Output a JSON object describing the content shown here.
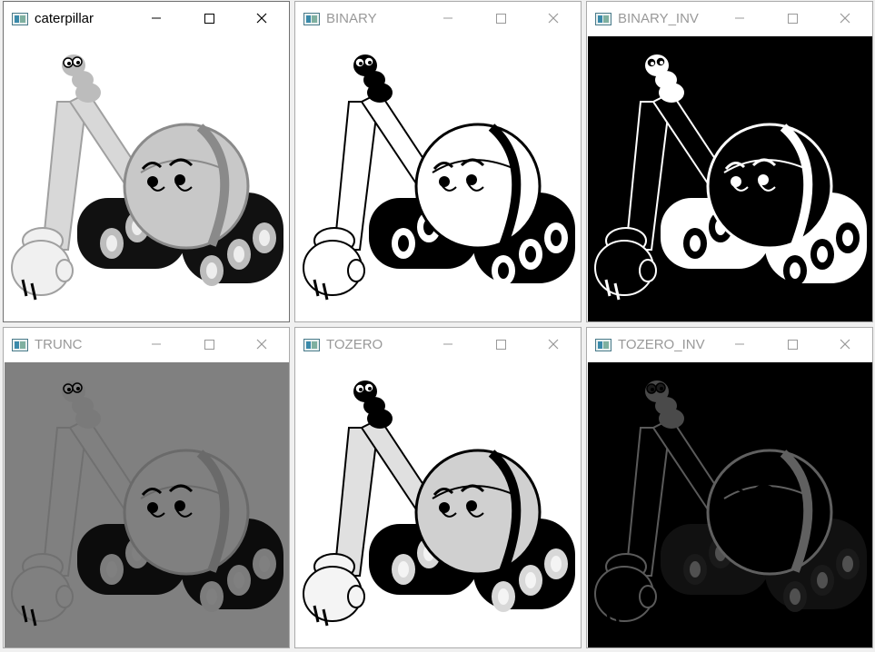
{
  "windows": [
    {
      "title": "caterpillar",
      "active": true,
      "variant": "original"
    },
    {
      "title": "BINARY",
      "active": false,
      "variant": "binary"
    },
    {
      "title": "BINARY_INV",
      "active": false,
      "variant": "binary_inv"
    },
    {
      "title": "TRUNC",
      "active": false,
      "variant": "trunc"
    },
    {
      "title": "TOZERO",
      "active": false,
      "variant": "tozero"
    },
    {
      "title": "TOZERO_INV",
      "active": false,
      "variant": "tozero_inv"
    }
  ],
  "controls": {
    "minimize_icon": "minimize-icon",
    "maximize_icon": "maximize-icon",
    "close_icon": "close-icon"
  },
  "colors": {
    "active_title": "#000000",
    "inactive_title": "#999999",
    "trunc_background": "#7f7f7f"
  }
}
